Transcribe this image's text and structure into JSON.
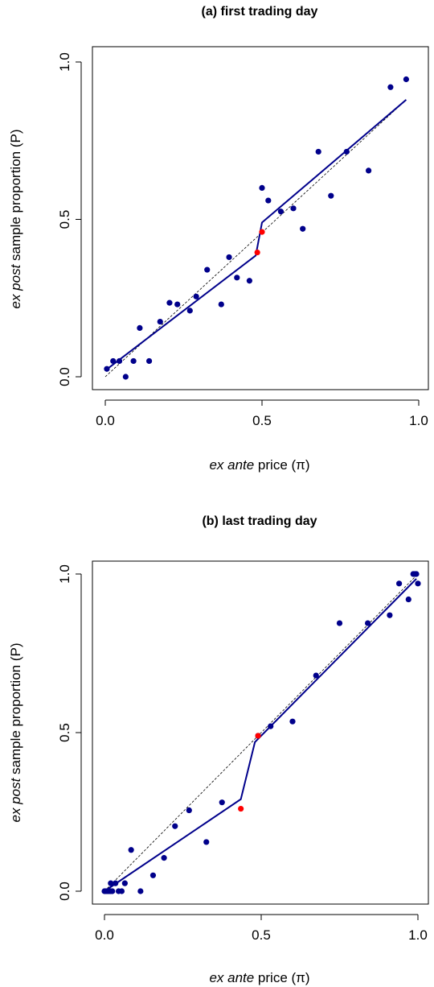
{
  "chart_data": [
    {
      "type": "scatter",
      "title": "(a) first trading day",
      "xlabel_pre": "ex ante",
      "xlabel_post": " price (π)",
      "ylabel_pre": "ex post",
      "ylabel_post": " sample proportion (P)",
      "xlim": [
        0,
        1
      ],
      "ylim": [
        0,
        1
      ],
      "x_ticks": [
        0.0,
        0.5,
        1.0
      ],
      "y_ticks": [
        0.0,
        0.5,
        1.0
      ],
      "tick_labels": [
        "0.0",
        "0.5",
        "1.0"
      ],
      "colors": {
        "points": "#00008b",
        "highlight": "#ff0000",
        "line": "#00008b",
        "diagonal": "#000000"
      },
      "points": [
        [
          0.005,
          0.025
        ],
        [
          0.025,
          0.05
        ],
        [
          0.045,
          0.05
        ],
        [
          0.065,
          0.0
        ],
        [
          0.09,
          0.05
        ],
        [
          0.11,
          0.155
        ],
        [
          0.14,
          0.05
        ],
        [
          0.175,
          0.175
        ],
        [
          0.205,
          0.235
        ],
        [
          0.23,
          0.23
        ],
        [
          0.27,
          0.21
        ],
        [
          0.29,
          0.255
        ],
        [
          0.325,
          0.34
        ],
        [
          0.37,
          0.23
        ],
        [
          0.395,
          0.38
        ],
        [
          0.42,
          0.315
        ],
        [
          0.46,
          0.305
        ],
        [
          0.5,
          0.6
        ],
        [
          0.52,
          0.56
        ],
        [
          0.56,
          0.525
        ],
        [
          0.6,
          0.535
        ],
        [
          0.63,
          0.47
        ],
        [
          0.68,
          0.715
        ],
        [
          0.72,
          0.575
        ],
        [
          0.77,
          0.715
        ],
        [
          0.84,
          0.655
        ],
        [
          0.91,
          0.92
        ],
        [
          0.96,
          0.945
        ]
      ],
      "highlight_points": [
        [
          0.485,
          0.395
        ],
        [
          0.5,
          0.46
        ]
      ],
      "fit_line": [
        [
          0.0,
          0.02
        ],
        [
          0.48,
          0.385
        ],
        [
          0.5,
          0.49
        ],
        [
          0.96,
          0.88
        ]
      ],
      "diagonal": [
        [
          0.0,
          0.0
        ],
        [
          0.96,
          0.88
        ]
      ]
    },
    {
      "type": "scatter",
      "title": "(b) last trading day",
      "xlabel_pre": "ex ante",
      "xlabel_post": " price (π)",
      "ylabel_pre": "ex post",
      "ylabel_post": " sample proportion (P)",
      "xlim": [
        0,
        1
      ],
      "ylim": [
        0,
        1
      ],
      "x_ticks": [
        0.0,
        0.5,
        1.0
      ],
      "y_ticks": [
        0.0,
        0.5,
        1.0
      ],
      "tick_labels": [
        "0.0",
        "0.5",
        "1.0"
      ],
      "colors": {
        "points": "#00008b",
        "highlight": "#ff0000",
        "line": "#00008b",
        "diagonal": "#000000"
      },
      "points": [
        [
          0.0,
          0.0
        ],
        [
          0.005,
          0.0
        ],
        [
          0.01,
          0.0
        ],
        [
          0.015,
          0.0
        ],
        [
          0.02,
          0.0
        ],
        [
          0.025,
          0.0
        ],
        [
          0.02,
          0.025
        ],
        [
          0.035,
          0.025
        ],
        [
          0.045,
          0.0
        ],
        [
          0.055,
          0.0
        ],
        [
          0.065,
          0.025
        ],
        [
          0.085,
          0.13
        ],
        [
          0.115,
          0.0
        ],
        [
          0.155,
          0.05
        ],
        [
          0.19,
          0.105
        ],
        [
          0.225,
          0.205
        ],
        [
          0.27,
          0.255
        ],
        [
          0.325,
          0.155
        ],
        [
          0.375,
          0.28
        ],
        [
          0.49,
          0.49
        ],
        [
          0.53,
          0.52
        ],
        [
          0.6,
          0.535
        ],
        [
          0.675,
          0.68
        ],
        [
          0.75,
          0.845
        ],
        [
          0.84,
          0.845
        ],
        [
          0.91,
          0.87
        ],
        [
          0.94,
          0.97
        ],
        [
          0.97,
          0.92
        ],
        [
          0.985,
          1.0
        ],
        [
          0.99,
          1.0
        ],
        [
          0.995,
          1.0
        ],
        [
          1.0,
          0.97
        ]
      ],
      "highlight_points": [
        [
          0.435,
          0.26
        ],
        [
          0.49,
          0.49
        ]
      ],
      "fit_line": [
        [
          0.0,
          0.0
        ],
        [
          0.435,
          0.29
        ],
        [
          0.48,
          0.47
        ],
        [
          0.995,
          0.985
        ]
      ],
      "diagonal": [
        [
          0.0,
          0.0
        ],
        [
          1.0,
          1.0
        ]
      ]
    }
  ]
}
